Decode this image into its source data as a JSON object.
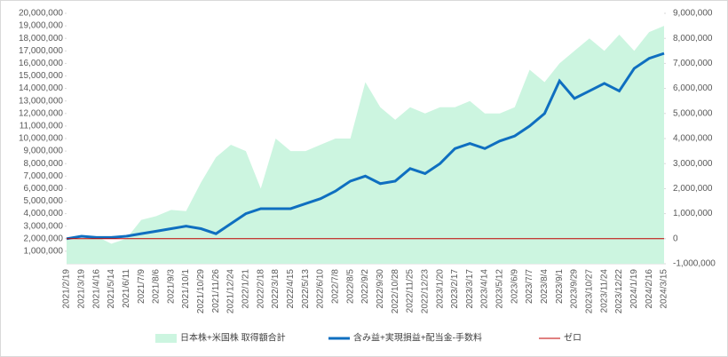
{
  "chart_data": {
    "type": "combo",
    "categories": [
      "2021/2/19",
      "2021/3/19",
      "2021/4/16",
      "2021/5/14",
      "2021/6/11",
      "2021/7/9",
      "2021/8/6",
      "2021/9/3",
      "2021/10/1",
      "2021/10/29",
      "2021/11/26",
      "2021/12/24",
      "2022/1/21",
      "2022/2/18",
      "2022/3/18",
      "2022/4/15",
      "2022/5/13",
      "2022/6/10",
      "2022/7/8",
      "2022/8/5",
      "2022/9/2",
      "2022/9/30",
      "2022/10/28",
      "2022/11/25",
      "2022/12/23",
      "2023/1/20",
      "2023/2/17",
      "2023/3/17",
      "2023/4/14",
      "2023/5/12",
      "2023/6/9",
      "2023/7/7",
      "2023/8/4",
      "2023/9/1",
      "2023/9/29",
      "2023/10/27",
      "2023/11/24",
      "2023/12/22",
      "2024/1/19",
      "2024/2/16",
      "2024/3/15"
    ],
    "series": [
      {
        "name": "日本株+米国株 取得額合計",
        "type": "area",
        "color": "#ccf5e0",
        "axis": "y",
        "values": [
          1900000,
          2000000,
          2200000,
          1600000,
          2000000,
          3500000,
          3800000,
          4300000,
          4200000,
          6500000,
          8500000,
          9500000,
          9000000,
          6000000,
          10000000,
          9000000,
          9000000,
          9500000,
          10000000,
          10000000,
          14500000,
          12500000,
          11500000,
          12500000,
          12000000,
          12500000,
          12500000,
          13000000,
          12000000,
          12000000,
          12500000,
          15500000,
          14500000,
          16000000,
          17000000,
          18000000,
          17000000,
          18300000,
          17000000,
          18500000,
          19000000
        ]
      },
      {
        "name": "含み益+実現損益+配当金-手数料",
        "type": "line",
        "color": "#0f6fc0",
        "axis": "y2",
        "values": [
          0,
          100000,
          50000,
          50000,
          100000,
          200000,
          300000,
          400000,
          500000,
          400000,
          200000,
          600000,
          1000000,
          1200000,
          1200000,
          1200000,
          1400000,
          1600000,
          1900000,
          2300000,
          2500000,
          2200000,
          2300000,
          2800000,
          2600000,
          3000000,
          3600000,
          3800000,
          3600000,
          3900000,
          4100000,
          4500000,
          5000000,
          6300000,
          5600000,
          5900000,
          6200000,
          5900000,
          6800000,
          7200000,
          7400000
        ]
      },
      {
        "name": "ゼロ",
        "type": "line",
        "color": "#c00000",
        "axis": "y2",
        "values": [
          0,
          0,
          0,
          0,
          0,
          0,
          0,
          0,
          0,
          0,
          0,
          0,
          0,
          0,
          0,
          0,
          0,
          0,
          0,
          0,
          0,
          0,
          0,
          0,
          0,
          0,
          0,
          0,
          0,
          0,
          0,
          0,
          0,
          0,
          0,
          0,
          0,
          0,
          0,
          0,
          0
        ]
      }
    ],
    "ylim": [
      0,
      20000000
    ],
    "yticks": [
      {
        "value": 1000000,
        "label": "1,000,000"
      },
      {
        "value": 2000000,
        "label": "2,000,000"
      },
      {
        "value": 3000000,
        "label": "3,000,000"
      },
      {
        "value": 4000000,
        "label": "4,000,000"
      },
      {
        "value": 5000000,
        "label": "5,000,000"
      },
      {
        "value": 6000000,
        "label": "6,000,000"
      },
      {
        "value": 7000000,
        "label": "7,000,000"
      },
      {
        "value": 8000000,
        "label": "8,000,000"
      },
      {
        "value": 9000000,
        "label": "9,000,000"
      },
      {
        "value": 10000000,
        "label": "10,000,000"
      },
      {
        "value": 11000000,
        "label": "11,000,000"
      },
      {
        "value": 12000000,
        "label": "12,000,000"
      },
      {
        "value": 13000000,
        "label": "13,000,000"
      },
      {
        "value": 14000000,
        "label": "14,000,000"
      },
      {
        "value": 15000000,
        "label": "15,000,000"
      },
      {
        "value": 16000000,
        "label": "16,000,000"
      },
      {
        "value": 17000000,
        "label": "17,000,000"
      },
      {
        "value": 18000000,
        "label": "18,000,000"
      },
      {
        "value": 19000000,
        "label": "19,000,000"
      },
      {
        "value": 20000000,
        "label": "20,000,000"
      }
    ],
    "y2lim": [
      -1000000,
      9000000
    ],
    "y2ticks": [
      {
        "value": -1000000,
        "label": "-1,000,000"
      },
      0,
      {
        "value": 1000000,
        "label": "1,000,000"
      },
      {
        "value": 2000000,
        "label": "2,000,000"
      },
      {
        "value": 3000000,
        "label": "3,000,000"
      },
      {
        "value": 4000000,
        "label": "4,000,000"
      },
      {
        "value": 5000000,
        "label": "5,000,000"
      },
      {
        "value": 6000000,
        "label": "6,000,000"
      },
      {
        "value": 7000000,
        "label": "7,000,000"
      },
      {
        "value": 8000000,
        "label": "8,000,000"
      },
      {
        "value": 9000000,
        "label": "9,000,000"
      }
    ],
    "legend": "bottom"
  }
}
